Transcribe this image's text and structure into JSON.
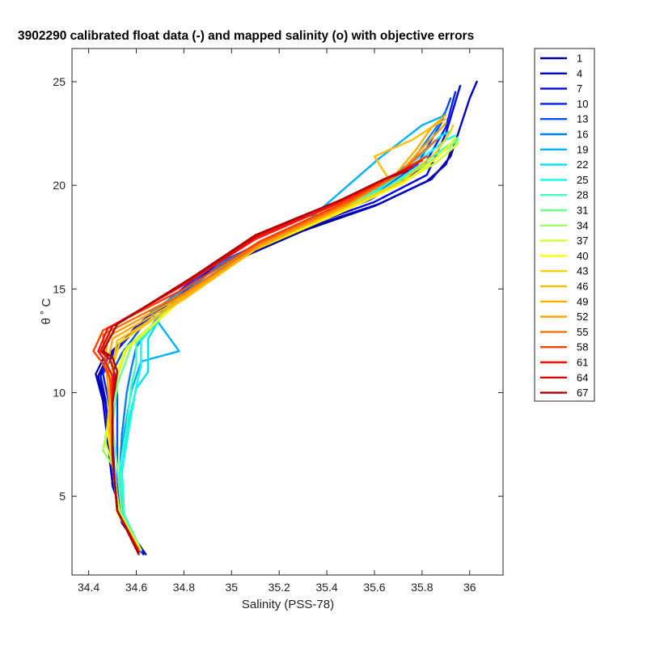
{
  "chart_data": {
    "type": "line",
    "title": "3902290 calibrated float data (-) and mapped salinity (o) with objective errors",
    "xlabel": "Salinity (PSS-78)",
    "ylabel": "θ ˚ C",
    "xlim": [
      34.33,
      36.14
    ],
    "ylim": [
      1.2,
      26.6
    ],
    "xticks": [
      34.4,
      34.6,
      34.8,
      35,
      35.2,
      35.4,
      35.6,
      35.8,
      36
    ],
    "xtick_labels": [
      "34.4",
      "34.6",
      "34.8",
      "35",
      "35.2",
      "35.4",
      "35.6",
      "35.8",
      "36"
    ],
    "yticks": [
      5,
      10,
      15,
      20,
      25
    ],
    "ytick_labels": [
      "5",
      "10",
      "15",
      "20",
      "25"
    ],
    "grid": false,
    "legend_position": "outside-right",
    "legend": [
      "1",
      "4",
      "7",
      "10",
      "13",
      "16",
      "19",
      "22",
      "25",
      "28",
      "31",
      "34",
      "37",
      "40",
      "43",
      "46",
      "49",
      "52",
      "55",
      "58",
      "61",
      "64",
      "67"
    ],
    "legend_colors": [
      "#00008f",
      "#0000bf",
      "#0000ef",
      "#0020ff",
      "#0050ff",
      "#0080ff",
      "#00afff",
      "#00dfff",
      "#10ffef",
      "#40ffbf",
      "#70ff8f",
      "#9fff60",
      "#cfff30",
      "#ffff00",
      "#ffcf00",
      "#ffbf00",
      "#ffaf00",
      "#ff9f00",
      "#ff6f00",
      "#ff4000",
      "#ff1000",
      "#df0000",
      "#af0000"
    ],
    "series": [
      {
        "name": "1",
        "color": "#00008f",
        "x": [
          34.64,
          34.56,
          34.5,
          34.49,
          34.47,
          34.44,
          34.47,
          34.6,
          34.9,
          35.3,
          35.6,
          35.82,
          35.9,
          35.92,
          35.94
        ],
        "y": [
          2.2,
          3.5,
          5.5,
          7.5,
          9.5,
          10.8,
          11.5,
          13.2,
          15.8,
          17.8,
          19.0,
          20.2,
          21.0,
          21.6,
          22.0
        ]
      },
      {
        "name": "4",
        "color": "#0000bf",
        "x": [
          34.63,
          34.55,
          34.5,
          34.48,
          34.46,
          34.43,
          34.46,
          34.62,
          34.92,
          35.3,
          35.62,
          35.84,
          35.92,
          36.0,
          36.03
        ],
        "y": [
          2.2,
          3.6,
          5.6,
          7.6,
          9.6,
          10.9,
          11.6,
          13.3,
          15.9,
          17.9,
          19.1,
          20.3,
          21.4,
          24.2,
          25.0
        ]
      },
      {
        "name": "7",
        "color": "#0000ef",
        "x": [
          34.63,
          34.54,
          34.5,
          34.49,
          34.47,
          34.45,
          34.48,
          34.62,
          34.9,
          35.28,
          35.6,
          35.82,
          35.9,
          35.96
        ],
        "y": [
          2.3,
          3.7,
          5.7,
          7.7,
          9.7,
          10.8,
          11.7,
          13.4,
          15.9,
          17.9,
          19.2,
          20.5,
          22.5,
          24.8
        ]
      },
      {
        "name": "10",
        "color": "#0020ff",
        "x": [
          34.62,
          34.54,
          34.51,
          34.5,
          34.48,
          34.46,
          34.5,
          34.63,
          34.9,
          35.28,
          35.58,
          35.8,
          35.9,
          35.94
        ],
        "y": [
          2.3,
          3.8,
          5.8,
          7.8,
          9.8,
          10.9,
          11.8,
          13.5,
          16.0,
          18.0,
          19.3,
          20.8,
          22.8,
          24.5
        ]
      },
      {
        "name": "13",
        "color": "#0050ff",
        "x": [
          34.62,
          34.54,
          34.52,
          34.52,
          34.52,
          34.5,
          34.54,
          34.65,
          34.92,
          35.28,
          35.58,
          35.78,
          35.88,
          35.92
        ],
        "y": [
          2.3,
          3.8,
          5.9,
          7.9,
          9.9,
          11.0,
          11.9,
          13.6,
          16.1,
          18.1,
          19.4,
          21.0,
          23.0,
          24.2
        ]
      },
      {
        "name": "16",
        "color": "#0080ff",
        "x": [
          34.62,
          34.55,
          34.53,
          34.54,
          34.56,
          34.58,
          34.6,
          34.7,
          34.95,
          35.3,
          35.58,
          35.76,
          35.86,
          35.9
        ],
        "y": [
          2.3,
          3.9,
          6.0,
          8.0,
          10.0,
          11.2,
          12.2,
          13.8,
          16.2,
          18.2,
          19.5,
          21.2,
          22.8,
          23.6
        ]
      },
      {
        "name": "19",
        "color": "#00afff",
        "x": [
          34.62,
          34.55,
          34.53,
          34.55,
          34.58,
          34.62,
          34.78,
          34.66,
          34.98,
          35.32,
          35.46,
          35.62,
          35.8,
          35.88
        ],
        "y": [
          2.4,
          3.9,
          6.0,
          8.1,
          10.1,
          11.5,
          12.0,
          13.9,
          16.3,
          18.3,
          19.7,
          21.3,
          22.9,
          23.3
        ]
      },
      {
        "name": "22",
        "color": "#00dfff",
        "x": [
          34.62,
          34.55,
          34.54,
          34.56,
          34.6,
          34.65,
          34.65,
          34.72,
          35.0,
          35.34,
          35.6,
          35.78,
          35.88,
          35.92
        ],
        "y": [
          2.4,
          4.0,
          6.1,
          8.2,
          10.2,
          11.0,
          12.6,
          14.0,
          16.4,
          18.4,
          19.7,
          21.3,
          22.4,
          22.6
        ]
      },
      {
        "name": "25",
        "color": "#10ffef",
        "x": [
          34.62,
          34.55,
          34.54,
          34.57,
          34.6,
          34.62,
          34.62,
          34.74,
          35.02,
          35.36,
          35.62,
          35.8,
          35.9,
          35.94
        ],
        "y": [
          2.4,
          4.0,
          6.2,
          8.3,
          10.3,
          11.3,
          12.5,
          14.1,
          16.5,
          18.5,
          19.8,
          21.3,
          22.2,
          22.4
        ]
      },
      {
        "name": "28",
        "color": "#40ffbf",
        "x": [
          34.62,
          34.55,
          34.53,
          34.56,
          34.58,
          34.6,
          34.6,
          34.75,
          35.04,
          35.38,
          35.64,
          35.82,
          35.92,
          35.95
        ],
        "y": [
          2.4,
          4.1,
          6.3,
          8.3,
          10.4,
          11.4,
          12.4,
          14.2,
          16.6,
          18.5,
          19.8,
          21.2,
          22.0,
          22.3
        ]
      },
      {
        "name": "31",
        "color": "#70ff8f",
        "x": [
          34.62,
          34.54,
          34.52,
          34.5,
          34.52,
          34.55,
          34.58,
          34.76,
          35.05,
          35.4,
          35.66,
          35.84,
          35.92,
          35.95
        ],
        "y": [
          2.4,
          4.1,
          6.4,
          8.4,
          10.4,
          11.3,
          12.3,
          14.3,
          16.7,
          18.6,
          19.9,
          21.2,
          21.9,
          22.2
        ]
      },
      {
        "name": "34",
        "color": "#9fff60",
        "x": [
          34.62,
          34.53,
          34.5,
          34.46,
          34.5,
          34.53,
          34.56,
          34.77,
          35.06,
          35.42,
          35.68,
          35.86,
          35.93,
          35.95
        ],
        "y": [
          2.4,
          4.2,
          6.5,
          7.2,
          9.8,
          11.2,
          12.2,
          14.3,
          16.7,
          18.6,
          19.9,
          21.1,
          21.8,
          22.1
        ]
      },
      {
        "name": "37",
        "color": "#cfff30",
        "x": [
          34.62,
          34.53,
          34.5,
          34.47,
          34.5,
          34.53,
          34.56,
          34.78,
          35.08,
          35.44,
          35.7,
          35.86,
          35.93,
          35.95
        ],
        "y": [
          2.4,
          4.2,
          6.6,
          7.6,
          9.9,
          11.1,
          12.1,
          14.4,
          16.8,
          18.7,
          20.0,
          21.1,
          21.8,
          22.0
        ]
      },
      {
        "name": "40",
        "color": "#ffff00",
        "x": [
          34.61,
          34.52,
          34.5,
          34.48,
          34.5,
          34.52,
          34.55,
          34.78,
          35.08,
          35.46,
          35.72,
          35.86,
          35.92,
          35.94
        ],
        "y": [
          2.4,
          4.2,
          6.7,
          8.0,
          10.0,
          11.0,
          12.0,
          14.4,
          16.8,
          18.7,
          20.1,
          21.3,
          22.0,
          22.3
        ]
      },
      {
        "name": "43",
        "color": "#ffcf00",
        "x": [
          34.61,
          34.52,
          34.5,
          34.48,
          34.49,
          34.5,
          34.53,
          34.78,
          35.08,
          35.46,
          35.72,
          35.86,
          35.92,
          35.93
        ],
        "y": [
          2.4,
          4.3,
          6.8,
          8.5,
          10.2,
          11.2,
          12.4,
          14.4,
          16.9,
          18.8,
          20.2,
          21.6,
          22.6,
          22.9
        ]
      },
      {
        "name": "46",
        "color": "#ffbf00",
        "x": [
          34.61,
          34.52,
          34.5,
          34.49,
          34.49,
          34.5,
          34.52,
          34.8,
          35.1,
          35.46,
          35.66,
          35.6,
          35.76,
          35.84,
          35.9
        ],
        "y": [
          2.4,
          4.3,
          6.8,
          8.7,
          10.3,
          11.3,
          12.5,
          14.5,
          16.9,
          18.9,
          20.3,
          21.4,
          22.2,
          22.8,
          23.2
        ]
      },
      {
        "name": "49",
        "color": "#ffaf00",
        "x": [
          34.61,
          34.52,
          34.5,
          34.49,
          34.48,
          34.48,
          34.5,
          34.8,
          35.1,
          35.46,
          35.68,
          35.78,
          35.84,
          35.9
        ],
        "y": [
          2.4,
          4.3,
          6.8,
          8.9,
          10.4,
          11.4,
          12.6,
          14.6,
          17.0,
          18.9,
          20.4,
          21.8,
          22.8,
          23.4
        ]
      },
      {
        "name": "52",
        "color": "#ff9f00",
        "x": [
          34.61,
          34.52,
          34.5,
          34.49,
          34.48,
          34.47,
          34.48,
          34.8,
          35.12,
          35.48,
          35.7,
          35.8,
          35.86,
          35.9
        ],
        "y": [
          2.4,
          4.3,
          6.9,
          9.0,
          10.5,
          11.5,
          12.7,
          14.7,
          17.1,
          19.0,
          20.5,
          21.8,
          22.5,
          23.0
        ]
      },
      {
        "name": "55",
        "color": "#ff6f00",
        "x": [
          34.61,
          34.52,
          34.5,
          34.5,
          34.49,
          34.47,
          34.46,
          34.8,
          35.12,
          35.48,
          35.7,
          35.8,
          35.86
        ],
        "y": [
          2.4,
          4.3,
          6.9,
          9.1,
          10.6,
          11.6,
          12.8,
          14.8,
          17.2,
          19.1,
          20.5,
          21.6,
          22.2
        ]
      },
      {
        "name": "58",
        "color": "#ff4000",
        "x": [
          34.61,
          34.52,
          34.5,
          34.5,
          34.49,
          34.46,
          34.42,
          34.46,
          34.8,
          35.12,
          35.48,
          35.7,
          35.82
        ],
        "y": [
          2.4,
          4.3,
          6.9,
          9.2,
          10.7,
          11.4,
          12.0,
          13.0,
          15.0,
          17.3,
          19.2,
          20.6,
          21.4
        ]
      },
      {
        "name": "61",
        "color": "#ff1000",
        "x": [
          34.61,
          34.52,
          34.5,
          34.5,
          34.5,
          34.47,
          34.44,
          34.48,
          34.8,
          35.1,
          35.46,
          35.68,
          35.8
        ],
        "y": [
          2.3,
          4.3,
          6.9,
          9.3,
          10.8,
          11.5,
          12.0,
          13.1,
          15.2,
          17.4,
          19.2,
          20.5,
          21.2
        ]
      },
      {
        "name": "64",
        "color": "#df0000",
        "x": [
          34.61,
          34.52,
          34.5,
          34.5,
          34.51,
          34.49,
          34.45,
          34.5,
          34.82,
          35.1,
          35.46,
          35.66,
          35.76
        ],
        "y": [
          2.3,
          4.3,
          6.9,
          9.4,
          10.9,
          11.6,
          12.0,
          13.2,
          15.4,
          17.5,
          19.3,
          20.4,
          20.9
        ]
      },
      {
        "name": "67",
        "color": "#af0000",
        "x": [
          34.61,
          34.52,
          34.5,
          34.5,
          34.52,
          34.5,
          34.46,
          34.52,
          34.84,
          35.1,
          35.46,
          35.64,
          35.74
        ],
        "y": [
          2.2,
          4.3,
          6.9,
          9.5,
          11.0,
          11.7,
          12.0,
          13.3,
          15.6,
          17.6,
          19.3,
          20.3,
          20.7
        ]
      }
    ]
  }
}
